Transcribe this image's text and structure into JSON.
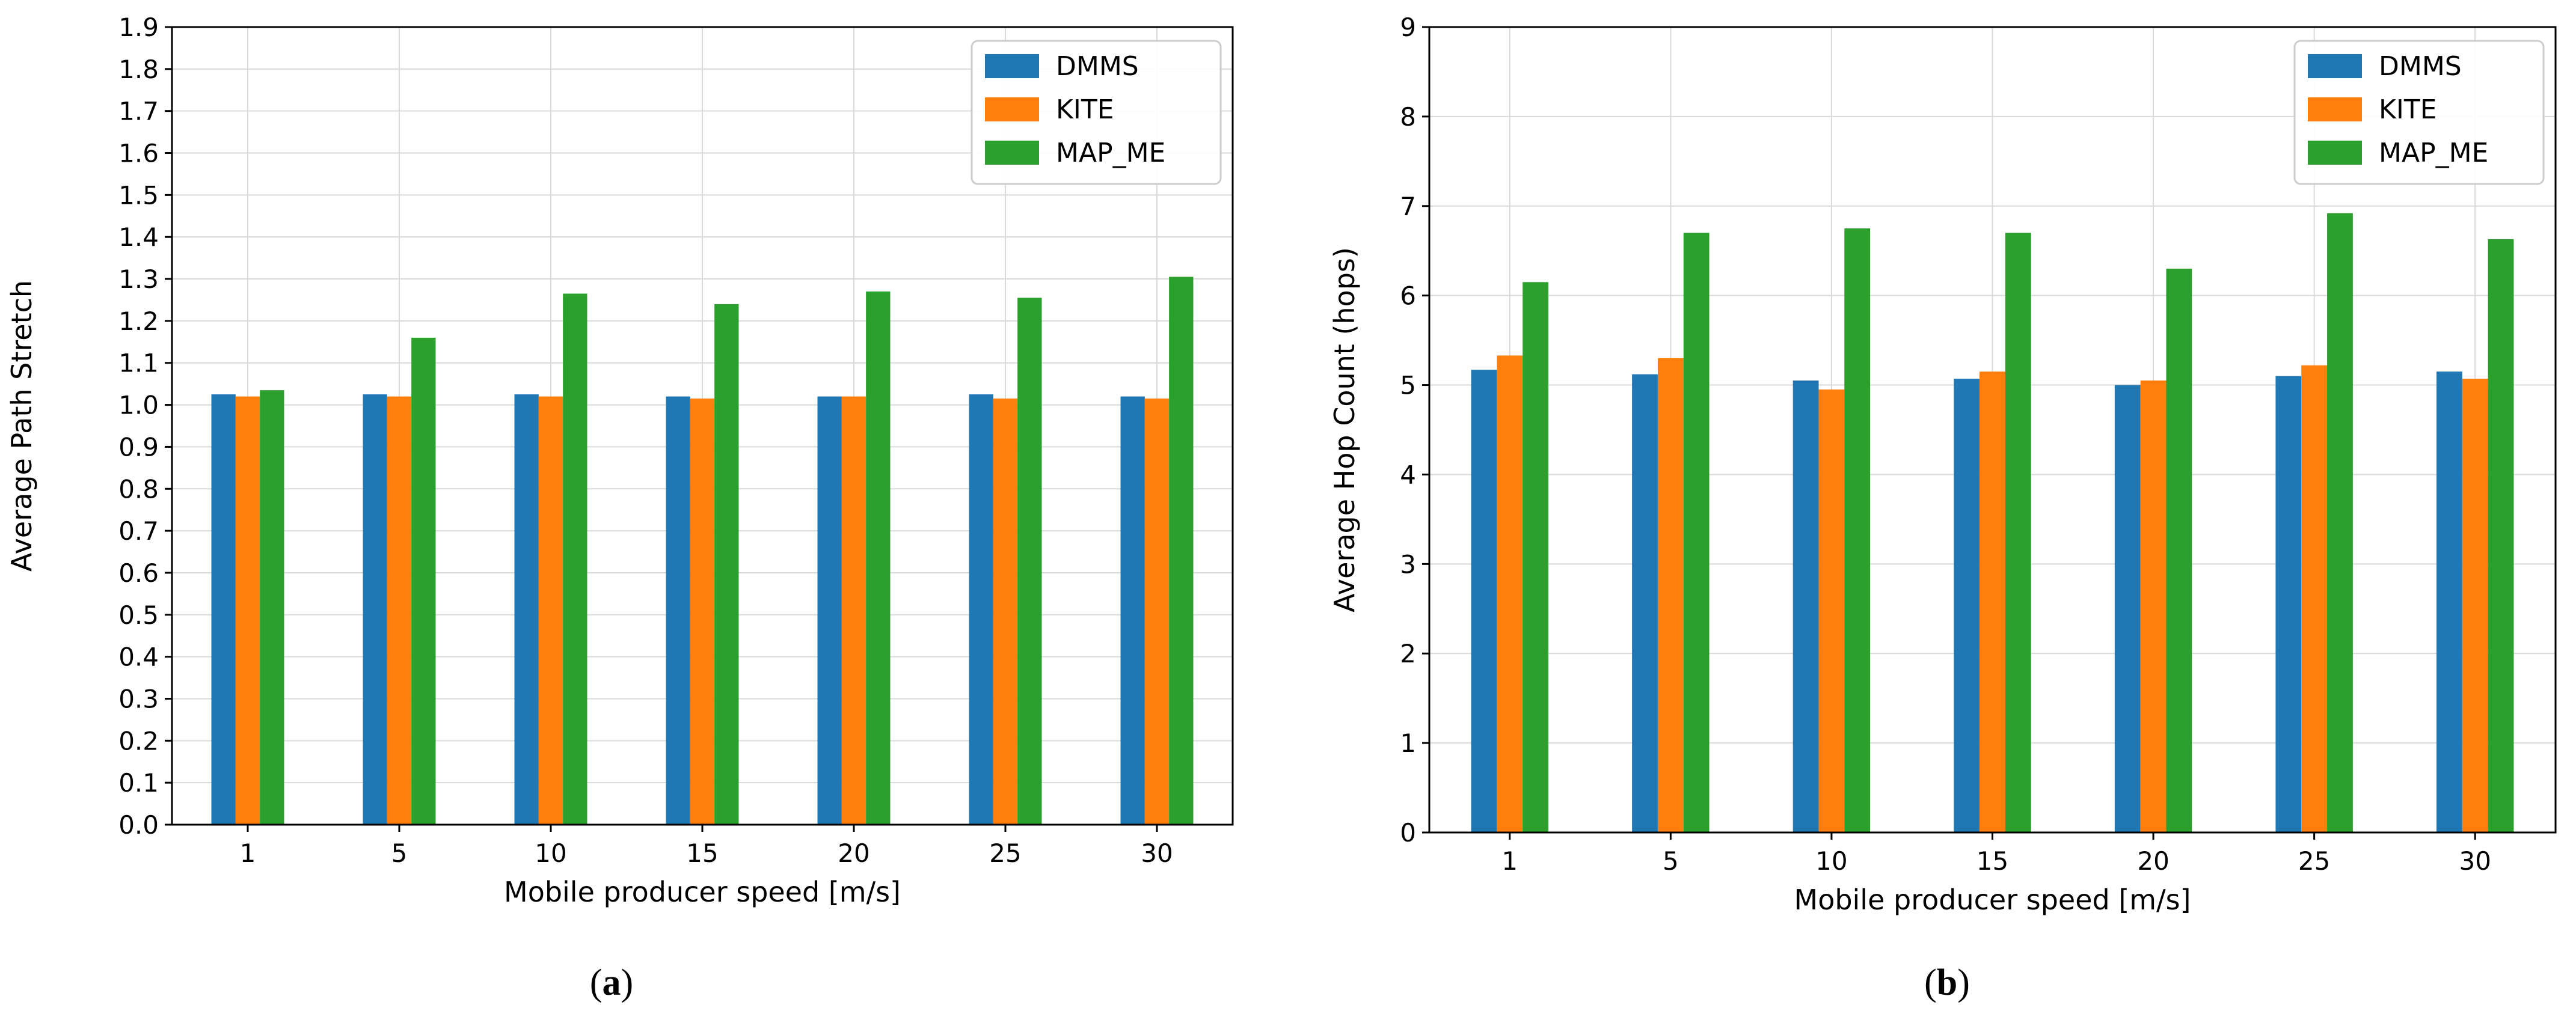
{
  "colors": {
    "series": [
      "#1f77b4",
      "#ff7f0e",
      "#2ca02c"
    ],
    "grid": "#d9d9d9",
    "axis": "#000000"
  },
  "chart_data": [
    {
      "type": "bar",
      "panel_label": "a",
      "title": "",
      "xlabel": "Mobile producer speed [m/s]",
      "ylabel": "Average Path Stretch",
      "categories": [
        "1",
        "5",
        "10",
        "15",
        "20",
        "25",
        "30"
      ],
      "ylim": [
        0,
        1.9
      ],
      "yticks": [
        "0.0",
        "0.1",
        "0.2",
        "0.3",
        "0.4",
        "0.5",
        "0.6",
        "0.7",
        "0.8",
        "0.9",
        "1.0",
        "1.1",
        "1.2",
        "1.3",
        "1.4",
        "1.5",
        "1.6",
        "1.7",
        "1.8",
        "1.9"
      ],
      "grid": true,
      "legend_position": "top-right",
      "series": [
        {
          "name": "DMMS",
          "values": [
            1.025,
            1.025,
            1.025,
            1.02,
            1.02,
            1.025,
            1.02
          ]
        },
        {
          "name": "KITE",
          "values": [
            1.02,
            1.02,
            1.02,
            1.015,
            1.02,
            1.015,
            1.015
          ]
        },
        {
          "name": "MAP_ME",
          "values": [
            1.035,
            1.16,
            1.265,
            1.24,
            1.27,
            1.255,
            1.305
          ]
        }
      ]
    },
    {
      "type": "bar",
      "panel_label": "b",
      "title": "",
      "xlabel": "Mobile producer speed [m/s]",
      "ylabel": "Average Hop Count (hops)",
      "categories": [
        "1",
        "5",
        "10",
        "15",
        "20",
        "25",
        "30"
      ],
      "ylim": [
        0,
        9
      ],
      "yticks": [
        "0",
        "1",
        "2",
        "3",
        "4",
        "5",
        "6",
        "7",
        "8",
        "9"
      ],
      "grid": true,
      "legend_position": "top-right",
      "series": [
        {
          "name": "DMMS",
          "values": [
            5.17,
            5.12,
            5.05,
            5.07,
            5.0,
            5.1,
            5.15
          ]
        },
        {
          "name": "KITE",
          "values": [
            5.33,
            5.3,
            4.95,
            5.15,
            5.05,
            5.22,
            5.07
          ]
        },
        {
          "name": "MAP_ME",
          "values": [
            6.15,
            6.7,
            6.75,
            6.7,
            6.3,
            6.92,
            6.63
          ]
        }
      ]
    }
  ]
}
